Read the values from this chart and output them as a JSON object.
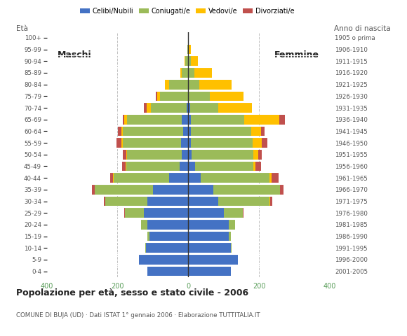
{
  "age_groups": [
    "0-4",
    "5-9",
    "10-14",
    "15-19",
    "20-24",
    "25-29",
    "30-34",
    "35-39",
    "40-44",
    "45-49",
    "50-54",
    "55-59",
    "60-64",
    "65-69",
    "70-74",
    "75-79",
    "80-84",
    "85-89",
    "90-94",
    "95-99",
    "100+"
  ],
  "birth_years": [
    "2001-2005",
    "1996-2000",
    "1991-1995",
    "1986-1990",
    "1981-1985",
    "1976-1980",
    "1971-1975",
    "1966-1970",
    "1961-1965",
    "1956-1960",
    "1951-1955",
    "1946-1950",
    "1941-1945",
    "1936-1940",
    "1931-1935",
    "1926-1930",
    "1921-1925",
    "1916-1920",
    "1911-1915",
    "1906-1910",
    "1905 o prima"
  ],
  "males": {
    "celibe": [
      115,
      140,
      120,
      110,
      115,
      125,
      115,
      100,
      55,
      25,
      18,
      20,
      15,
      18,
      5,
      0,
      0,
      0,
      0,
      0,
      0
    ],
    "coniugato": [
      0,
      0,
      2,
      5,
      18,
      55,
      120,
      165,
      155,
      150,
      155,
      165,
      170,
      155,
      100,
      80,
      55,
      18,
      8,
      3,
      0
    ],
    "vedovo": [
      0,
      0,
      0,
      0,
      0,
      0,
      0,
      0,
      2,
      2,
      3,
      5,
      5,
      8,
      12,
      8,
      10,
      5,
      2,
      0,
      0
    ],
    "divorziato": [
      0,
      0,
      0,
      0,
      0,
      2,
      3,
      8,
      8,
      10,
      10,
      12,
      8,
      5,
      8,
      3,
      0,
      0,
      0,
      0,
      0
    ]
  },
  "females": {
    "nubile": [
      120,
      140,
      120,
      115,
      115,
      100,
      85,
      70,
      35,
      20,
      10,
      8,
      8,
      8,
      5,
      2,
      2,
      2,
      2,
      0,
      0
    ],
    "coniugata": [
      0,
      0,
      2,
      5,
      18,
      55,
      145,
      190,
      195,
      165,
      175,
      175,
      170,
      150,
      80,
      60,
      30,
      15,
      5,
      2,
      0
    ],
    "vedova": [
      0,
      0,
      0,
      0,
      0,
      0,
      2,
      0,
      5,
      5,
      12,
      25,
      28,
      100,
      95,
      95,
      90,
      50,
      20,
      5,
      0
    ],
    "divorziata": [
      0,
      0,
      0,
      0,
      0,
      2,
      5,
      10,
      20,
      15,
      10,
      15,
      10,
      15,
      0,
      0,
      0,
      0,
      0,
      0,
      0
    ]
  },
  "colors": {
    "celibe": "#4472c4",
    "coniugato": "#9bbb59",
    "vedovo": "#ffc000",
    "divorziato": "#c0504d"
  },
  "xlim": 400,
  "title": "Popolazione per età, sesso e stato civile - 2006",
  "subtitle": "COMUNE DI BUJA (UD) · Dati ISTAT 1° gennaio 2006 · Elaborazione TUTTITALIA.IT",
  "ylabel_left": "Età",
  "ylabel_right": "Anno di nascita",
  "label_maschi": "Maschi",
  "label_femmine": "Femmine",
  "legend_labels": [
    "Celibi/Nubili",
    "Coniugati/e",
    "Vedovi/e",
    "Divorziati/e"
  ],
  "background_color": "#ffffff",
  "bar_height": 0.82
}
